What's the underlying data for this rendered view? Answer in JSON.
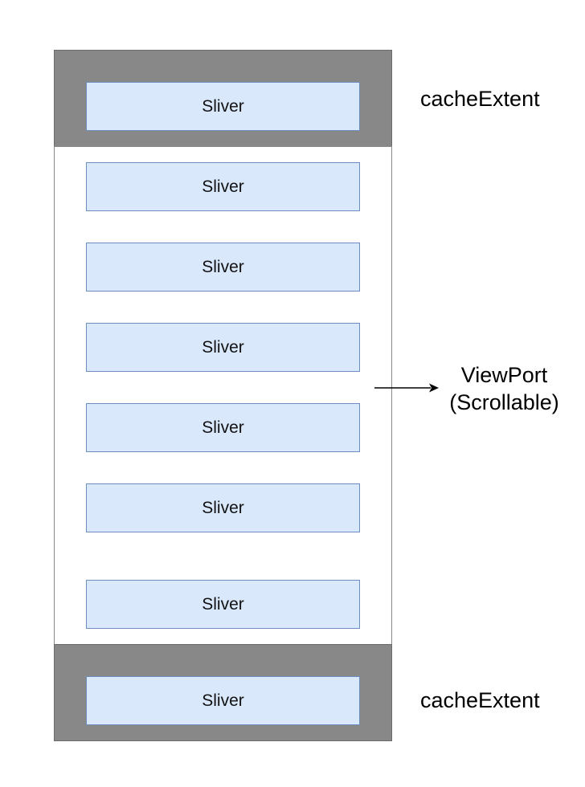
{
  "slivers": [
    "Sliver",
    "Sliver",
    "Sliver",
    "Sliver",
    "Sliver",
    "Sliver",
    "Sliver",
    "Sliver"
  ],
  "labels": {
    "cache_top": "cacheExtent",
    "cache_bottom": "cacheExtent",
    "viewport_line1": "ViewPort",
    "viewport_line2": "(Scrollable)"
  }
}
